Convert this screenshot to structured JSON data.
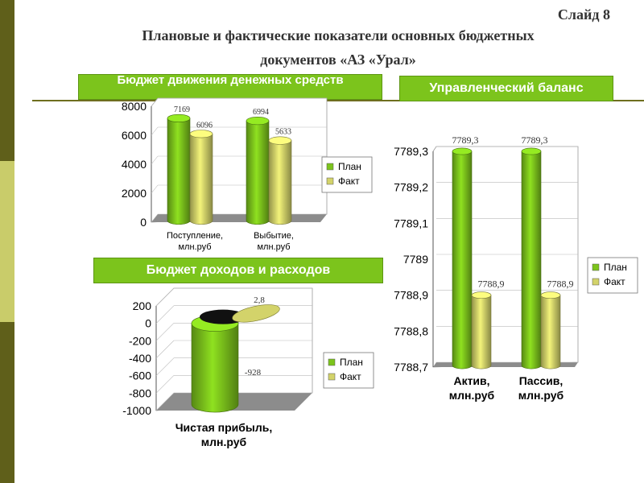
{
  "slide": {
    "number": "Слайд 8",
    "title_line1": "Плановые и фактические показатели основных бюджетных",
    "title_line2": "документов «АЗ «Урал»"
  },
  "banners": {
    "cash_flow": "Бюджет движения денежных средств",
    "balance": "Управленческий баланс",
    "income": "Бюджет доходов и расходов"
  },
  "colors": {
    "plan": "#7cc41c",
    "fact": "#d3d36a",
    "sidebar_dark": "#5f5f1a",
    "sidebar_light": "#c9cc6a"
  },
  "chart_data": [
    {
      "type": "bar",
      "categories": [
        "Поступление, млн.руб",
        "Выбытие, млн.руб"
      ],
      "series": [
        {
          "name": "План",
          "values": [
            7169,
            6994
          ]
        },
        {
          "name": "Факт",
          "values": [
            6096,
            5633
          ]
        }
      ],
      "ylim": [
        0,
        8000
      ],
      "yticks": [
        "0",
        "2000",
        "4000",
        "6000",
        "8000"
      ],
      "value_labels": {
        "План": [
          "7169",
          "6994"
        ],
        "Факт": [
          "6096",
          "5633"
        ]
      },
      "legend": "right",
      "grid": true
    },
    {
      "type": "bar",
      "categories": [
        "Актив, млн.руб",
        "Пассив, млн.руб"
      ],
      "series": [
        {
          "name": "План",
          "values": [
            7789.3,
            7789.3
          ]
        },
        {
          "name": "Факт",
          "values": [
            7788.9,
            7788.9
          ]
        }
      ],
      "ylim": [
        7788.7,
        7789.3
      ],
      "yticks": [
        "7788,7",
        "7788,8",
        "7788,9",
        "7789",
        "7789,1",
        "7789,2",
        "7789,3"
      ],
      "value_labels": {
        "План": [
          "7789,3",
          "7789,3"
        ],
        "Факт": [
          "7788,9",
          "7788,9"
        ]
      },
      "legend": "right",
      "grid": true
    },
    {
      "type": "bar",
      "categories": [
        "Чистая прибыль, млн.руб"
      ],
      "series": [
        {
          "name": "План",
          "values": [
            -928
          ]
        },
        {
          "name": "Факт",
          "values": [
            2.8
          ]
        }
      ],
      "ylim": [
        -1000,
        200
      ],
      "yticks": [
        "-1000",
        "-800",
        "-600",
        "-400",
        "-200",
        "0",
        "200"
      ],
      "value_labels": {
        "План": [
          "-928"
        ],
        "Факт": [
          "2,8"
        ]
      },
      "legend": "right",
      "grid": true
    }
  ]
}
